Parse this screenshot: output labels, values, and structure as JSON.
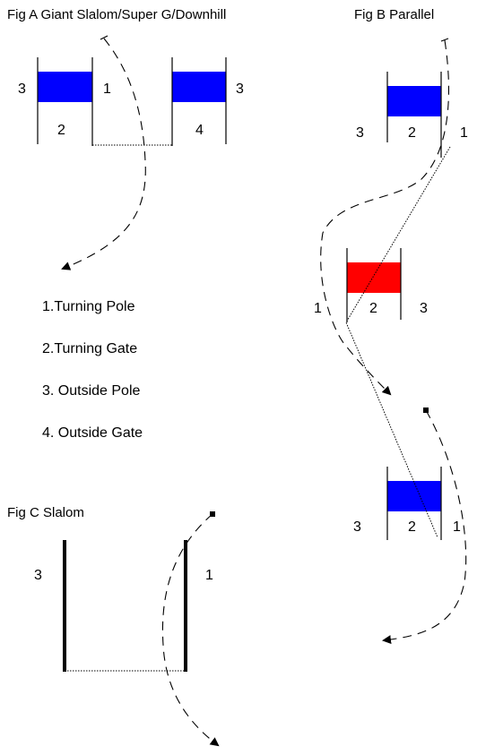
{
  "figA": {
    "title": "Fig A Giant Slalom/Super G/Downhill",
    "labels": {
      "outside_pole_left": "3",
      "turning_pole": "1",
      "turning_gate": "2",
      "outside_gate": "4",
      "outside_pole_right": "3"
    }
  },
  "figB": {
    "title": "Fig B Parallel",
    "gate1": {
      "outside_pole": "3",
      "turning_gate": "2",
      "turning_pole": "1"
    },
    "gate2": {
      "turning_pole": "1",
      "turning_gate": "2",
      "outside_pole": "3"
    },
    "gate3": {
      "outside_pole": "3",
      "turning_gate": "2",
      "turning_pole": "1"
    }
  },
  "legend": {
    "items": [
      "1.Turning Pole",
      "2.Turning Gate",
      "3. Outside Pole",
      "4. Outside Gate"
    ]
  },
  "figC": {
    "title": "Fig C  Slalom",
    "labels": {
      "outside_pole": "3",
      "turning_pole": "1"
    }
  },
  "colors": {
    "gate_blue": "#0000ff",
    "gate_red": "#ff0000",
    "ink": "#000000"
  }
}
